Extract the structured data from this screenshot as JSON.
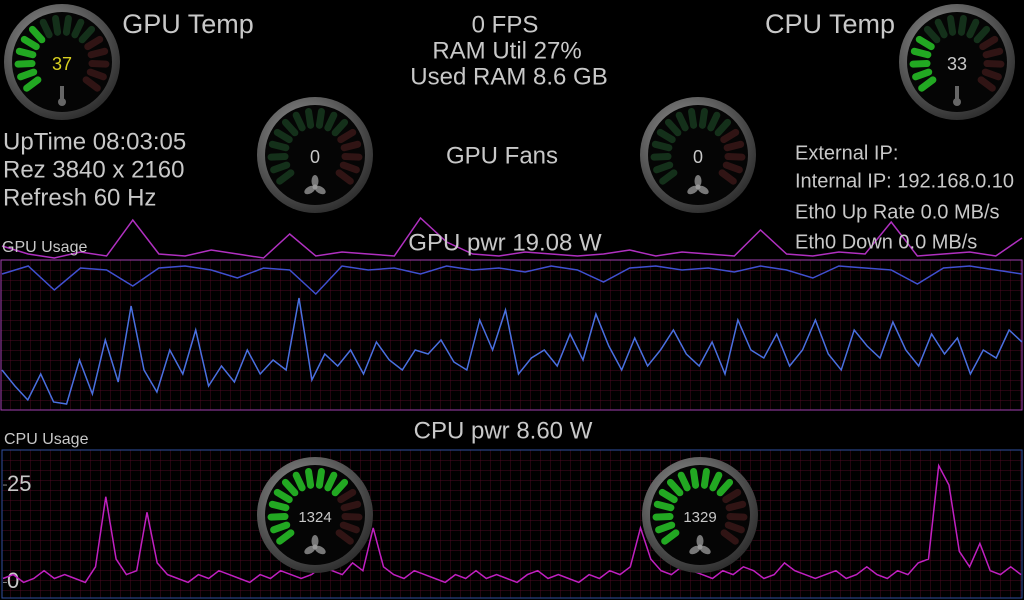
{
  "header": {
    "gpu_temp_label": "GPU Temp",
    "cpu_temp_label": "CPU Temp",
    "fps": "0 FPS",
    "ram_util": "RAM Util 27%",
    "used_ram": "Used RAM 8.6 GB",
    "gpu_fans_label": "GPU Fans"
  },
  "system": {
    "uptime": "UpTime 08:03:05",
    "resolution": "Rez 3840 x 2160",
    "refresh": "Refresh 60 Hz"
  },
  "network": {
    "external_ip": "External IP:",
    "internal_ip": "Internal IP: 192.168.0.10",
    "up_rate": "Eth0 Up Rate 0.0 MB/s",
    "down_rate": "Eth0 Down 0.0 MB/s"
  },
  "gauges": [
    {
      "value": 37,
      "range": [
        0,
        100
      ],
      "icon": "thermo",
      "value_color": "#d8d020"
    },
    {
      "value": 33,
      "range": [
        0,
        100
      ],
      "icon": "thermo",
      "value_color": "#c8c8c8"
    },
    {
      "value": 0,
      "range": [
        0,
        100
      ],
      "icon": "fan",
      "value_color": "#c8c8c8"
    },
    {
      "value": 0,
      "range": [
        0,
        100
      ],
      "icon": "fan",
      "value_color": "#c8c8c8"
    },
    {
      "value": 1324,
      "range": [
        0,
        2000
      ],
      "icon": "fan",
      "value_color": "#c8c8c8"
    },
    {
      "value": 1329,
      "range": [
        0,
        2000
      ],
      "icon": "fan",
      "value_color": "#c8c8c8"
    }
  ],
  "gpu_chart": {
    "label": "GPU Usage",
    "title": "GPU pwr 19.08 W",
    "ylim": [
      0,
      100
    ],
    "series": [
      {
        "color": "#b030c0",
        "values": [
          82,
          78,
          76,
          79,
          77,
          95,
          78,
          77,
          80,
          78,
          76,
          88,
          77,
          79,
          78,
          77,
          96,
          84,
          78,
          77,
          79,
          78,
          77,
          78,
          80,
          77,
          79,
          78,
          77,
          90,
          78,
          77,
          79,
          78,
          94,
          77,
          78,
          79,
          77,
          86
        ]
      },
      {
        "color": "#4050d0",
        "values": [
          68,
          72,
          60,
          71,
          70,
          62,
          71,
          72,
          70,
          66,
          71,
          70,
          58,
          72,
          70,
          71,
          68,
          72,
          70,
          71,
          69,
          72,
          70,
          64,
          71,
          72,
          70,
          71,
          69,
          72,
          70,
          66,
          72,
          71,
          70,
          63,
          71,
          72,
          70,
          68
        ]
      },
      {
        "color": "#4a70e0",
        "values": [
          20,
          12,
          5,
          18,
          4,
          3,
          25,
          8,
          35,
          14,
          52,
          20,
          9,
          30,
          18,
          40,
          12,
          22,
          14,
          30,
          18,
          25,
          20,
          56,
          15,
          28,
          22,
          30,
          18,
          34,
          25,
          20,
          30,
          28,
          35,
          24,
          20,
          45,
          30,
          50,
          18,
          26,
          30,
          22,
          38,
          25,
          48,
          32,
          20,
          36,
          22,
          30,
          40,
          28,
          22,
          34,
          18,
          45,
          30,
          26,
          38,
          22,
          30,
          45,
          28,
          20,
          40,
          32,
          26,
          44,
          30,
          22,
          38,
          28,
          36,
          18,
          30,
          26,
          40,
          34
        ]
      }
    ]
  },
  "cpu_chart": {
    "label": "CPU Usage",
    "title": "CPU pwr 8.60 W",
    "ylim": [
      -4,
      34
    ],
    "yticks": [
      0,
      25
    ],
    "series": [
      {
        "color": "#c020c0",
        "values": [
          1,
          2,
          0,
          1,
          3,
          1,
          2,
          1,
          0,
          4,
          22,
          6,
          2,
          3,
          18,
          5,
          2,
          1,
          0,
          2,
          1,
          3,
          2,
          1,
          0,
          2,
          1,
          3,
          2,
          1,
          2,
          4,
          3,
          2,
          5,
          3,
          14,
          4,
          2,
          1,
          3,
          2,
          1,
          0,
          2,
          1,
          3,
          1,
          2,
          1,
          0,
          2,
          3,
          1,
          2,
          1,
          0,
          2,
          1,
          3,
          2,
          4,
          14,
          6,
          3,
          2,
          4,
          3,
          2,
          1,
          3,
          2,
          4,
          3,
          1,
          2,
          5,
          3,
          2,
          1,
          2,
          3,
          1,
          2,
          4,
          2,
          1,
          3,
          2,
          5,
          6,
          30,
          25,
          8,
          4,
          10,
          3,
          2,
          4,
          2
        ]
      }
    ]
  }
}
